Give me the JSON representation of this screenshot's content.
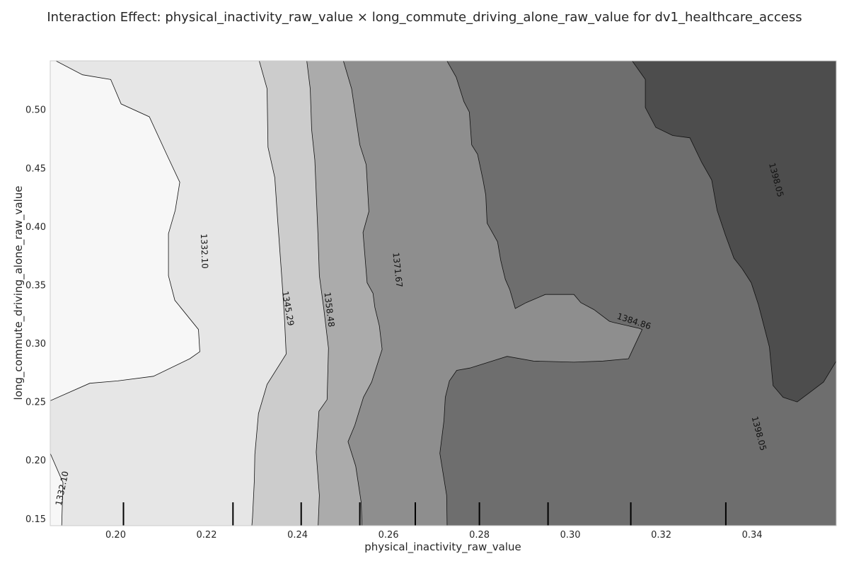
{
  "chart_data": {
    "type": "heatmap",
    "title": "Interaction Effect: physical_inactivity_raw_value × long_commute_driving_alone_raw_value for dv1_healthcare_access",
    "xlabel": "physical_inactivity_raw_value",
    "ylabel": "long_commute_driving_alone_raw_value",
    "xlim": [
      0.1856,
      0.3585
    ],
    "ylim": [
      0.1441,
      0.5419
    ],
    "x_ticks": [
      "0.20",
      "0.22",
      "0.24",
      "0.26",
      "0.28",
      "0.30",
      "0.32",
      "0.34"
    ],
    "x_tick_values": [
      0.2,
      0.22,
      0.24,
      0.26,
      0.28,
      0.3,
      0.32,
      0.34
    ],
    "y_ticks": [
      "0.15",
      "0.20",
      "0.25",
      "0.30",
      "0.35",
      "0.40",
      "0.45",
      "0.50"
    ],
    "y_tick_values": [
      0.15,
      0.2,
      0.25,
      0.3,
      0.35,
      0.4,
      0.45,
      0.5
    ],
    "contour_levels": [
      1332.1,
      1345.29,
      1358.48,
      1371.67,
      1384.86,
      1398.05
    ],
    "band_colors": [
      "#f7f7f7",
      "#e6e6e6",
      "#cccccc",
      "#ababab",
      "#8e8e8e",
      "#6e6e6e",
      "#4d4d4d"
    ],
    "contour_labels": [
      {
        "text": "1332.10",
        "x": 0.2195,
        "y": 0.379,
        "angle": 88
      },
      {
        "text": "1332.10",
        "x": 0.1882,
        "y": 0.176,
        "angle": -78
      },
      {
        "text": "1345.29",
        "x": 0.2379,
        "y": 0.33,
        "angle": 80
      },
      {
        "text": "1358.48",
        "x": 0.247,
        "y": 0.329,
        "angle": 83
      },
      {
        "text": "1371.67",
        "x": 0.262,
        "y": 0.363,
        "angle": 84
      },
      {
        "text": "1384.86",
        "x": 0.314,
        "y": 0.319,
        "angle": 18
      },
      {
        "text": "1398.05",
        "x": 0.3453,
        "y": 0.44,
        "angle": 75
      },
      {
        "text": "1398.05",
        "x": 0.3415,
        "y": 0.223,
        "angle": 75
      }
    ],
    "rug_x": [
      0.2017,
      0.2258,
      0.2408,
      0.2537,
      0.2659,
      0.28,
      0.2951,
      0.3133,
      0.3342
    ],
    "contours": [
      [
        [
          0.1856,
          0.251
        ],
        [
          0.1943,
          0.266
        ],
        [
          0.2004,
          0.268
        ],
        [
          0.2083,
          0.272
        ],
        [
          0.2163,
          0.287
        ],
        [
          0.2185,
          0.293
        ],
        [
          0.2182,
          0.312
        ],
        [
          0.213,
          0.337
        ],
        [
          0.2116,
          0.358
        ],
        [
          0.2116,
          0.394
        ],
        [
          0.2131,
          0.414
        ],
        [
          0.2141,
          0.438
        ],
        [
          0.2112,
          0.462
        ],
        [
          0.2074,
          0.494
        ],
        [
          0.2012,
          0.505
        ],
        [
          0.1989,
          0.526
        ],
        [
          0.1927,
          0.53
        ],
        [
          0.1863,
          0.543
        ]
      ],
      [
        [
          0.1856,
          0.206
        ],
        [
          0.1884,
          0.181
        ],
        [
          0.1881,
          0.142
        ]
      ],
      [
        [
          0.2315,
          0.543
        ],
        [
          0.2333,
          0.518
        ],
        [
          0.2335,
          0.468
        ],
        [
          0.235,
          0.442
        ],
        [
          0.2356,
          0.407
        ],
        [
          0.2365,
          0.358
        ],
        [
          0.2371,
          0.324
        ],
        [
          0.2375,
          0.291
        ],
        [
          0.2333,
          0.265
        ],
        [
          0.2314,
          0.24
        ],
        [
          0.2306,
          0.205
        ],
        [
          0.2305,
          0.183
        ],
        [
          0.2301,
          0.151
        ],
        [
          0.2299,
          0.142
        ]
      ],
      [
        [
          0.242,
          0.543
        ],
        [
          0.2428,
          0.518
        ],
        [
          0.2431,
          0.483
        ],
        [
          0.2438,
          0.457
        ],
        [
          0.2445,
          0.392
        ],
        [
          0.2448,
          0.358
        ],
        [
          0.2458,
          0.329
        ],
        [
          0.2468,
          0.296
        ],
        [
          0.2465,
          0.252
        ],
        [
          0.2447,
          0.242
        ],
        [
          0.2441,
          0.207
        ],
        [
          0.2448,
          0.17
        ],
        [
          0.2445,
          0.142
        ]
      ],
      [
        [
          0.25,
          0.543
        ],
        [
          0.2519,
          0.518
        ],
        [
          0.2537,
          0.47
        ],
        [
          0.2551,
          0.453
        ],
        [
          0.2557,
          0.413
        ],
        [
          0.2544,
          0.395
        ],
        [
          0.2553,
          0.352
        ],
        [
          0.2566,
          0.343
        ],
        [
          0.257,
          0.331
        ],
        [
          0.258,
          0.315
        ],
        [
          0.2586,
          0.295
        ],
        [
          0.2563,
          0.267
        ],
        [
          0.2545,
          0.254
        ],
        [
          0.2526,
          0.23
        ],
        [
          0.2511,
          0.216
        ],
        [
          0.2528,
          0.195
        ],
        [
          0.254,
          0.164
        ],
        [
          0.2542,
          0.142
        ]
      ],
      [
        [
          0.2727,
          0.543
        ],
        [
          0.2749,
          0.528
        ],
        [
          0.2766,
          0.507
        ],
        [
          0.2778,
          0.498
        ],
        [
          0.2783,
          0.47
        ],
        [
          0.2796,
          0.462
        ],
        [
          0.2808,
          0.44
        ],
        [
          0.2814,
          0.427
        ],
        [
          0.2817,
          0.403
        ],
        [
          0.284,
          0.387
        ],
        [
          0.2847,
          0.371
        ],
        [
          0.2857,
          0.355
        ],
        [
          0.2867,
          0.346
        ],
        [
          0.2879,
          0.33
        ],
        [
          0.2903,
          0.335
        ],
        [
          0.2945,
          0.342
        ],
        [
          0.3008,
          0.342
        ],
        [
          0.3023,
          0.335
        ],
        [
          0.3052,
          0.329
        ],
        [
          0.3086,
          0.319
        ],
        [
          0.3095,
          0.318
        ],
        [
          0.3151,
          0.313
        ],
        [
          0.3158,
          0.312
        ],
        [
          0.3128,
          0.287
        ],
        [
          0.3072,
          0.285
        ],
        [
          0.3008,
          0.284
        ],
        [
          0.2919,
          0.285
        ],
        [
          0.2861,
          0.289
        ],
        [
          0.2779,
          0.279
        ],
        [
          0.275,
          0.277
        ],
        [
          0.2734,
          0.268
        ],
        [
          0.2725,
          0.254
        ],
        [
          0.2722,
          0.234
        ],
        [
          0.2713,
          0.206
        ],
        [
          0.2728,
          0.17
        ],
        [
          0.2729,
          0.142
        ]
      ],
      [
        [
          0.3134,
          0.543
        ],
        [
          0.3165,
          0.526
        ],
        [
          0.3165,
          0.502
        ],
        [
          0.3188,
          0.485
        ],
        [
          0.3225,
          0.478
        ],
        [
          0.3263,
          0.476
        ],
        [
          0.3289,
          0.455
        ],
        [
          0.3311,
          0.44
        ],
        [
          0.3323,
          0.414
        ],
        [
          0.3341,
          0.393
        ],
        [
          0.336,
          0.373
        ],
        [
          0.3378,
          0.364
        ],
        [
          0.3398,
          0.352
        ],
        [
          0.3414,
          0.333
        ],
        [
          0.3438,
          0.297
        ],
        [
          0.3446,
          0.264
        ],
        [
          0.3468,
          0.254
        ],
        [
          0.3499,
          0.25
        ],
        [
          0.3557,
          0.267
        ],
        [
          0.3585,
          0.285
        ]
      ]
    ]
  }
}
